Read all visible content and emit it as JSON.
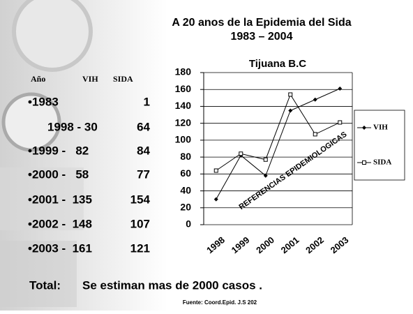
{
  "slide": {
    "title": "A 20 anos de la Epidemia del Sida",
    "subtitle": "1983 – 2004",
    "table": {
      "header": [
        "Año",
        "VIH",
        "SIDA"
      ],
      "rows": [
        [
          "•1983",
          "1"
        ],
        [
          "1998 - 30",
          "64"
        ],
        [
          "•1999 -   82",
          "84"
        ],
        [
          "•2000 -   58",
          "77"
        ],
        [
          "•2001 -  135",
          "154"
        ],
        [
          "•2002 -  148",
          "107"
        ],
        [
          "•2003 -  161",
          "121"
        ]
      ]
    },
    "total_label": "Total:",
    "total_text": "Se estiman mas de  2000 casos .",
    "source": "Fuente: Coord.Epid. J.S 202"
  },
  "chart_data": {
    "type": "line",
    "title": "Tijuana B.C",
    "annotation": "REFERENCIAS EPIDEMIOLOGICAS",
    "categories": [
      "1998",
      "1999",
      "2000",
      "2001",
      "2002",
      "2003"
    ],
    "series": [
      {
        "name": "VIH",
        "color": "#000000",
        "marker": "diamond",
        "values": [
          30,
          82,
          58,
          135,
          148,
          161
        ]
      },
      {
        "name": "SIDA",
        "color": "#000000",
        "marker": "square",
        "values": [
          64,
          84,
          77,
          154,
          107,
          121
        ]
      }
    ],
    "ylim": [
      0,
      180
    ],
    "yticks": [
      0,
      20,
      40,
      60,
      80,
      100,
      120,
      140,
      160,
      180
    ],
    "grid": true
  }
}
